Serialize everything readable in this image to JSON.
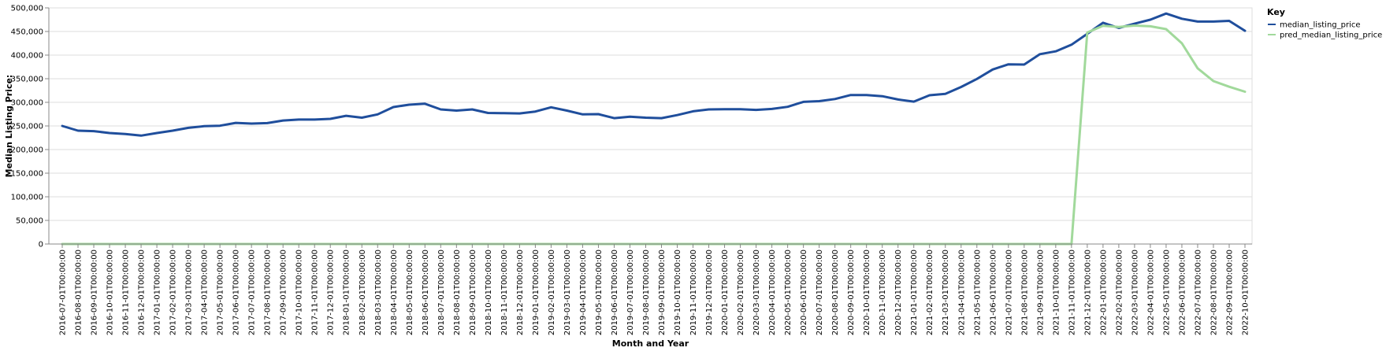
{
  "chart_data": {
    "type": "line",
    "title": "",
    "xlabel": "Month and Year",
    "ylabel": "Median Listing Price:",
    "ylim": [
      0,
      500000
    ],
    "y_ticks": [
      "0",
      "50,000",
      "100,000",
      "150,000",
      "200,000",
      "250,000",
      "300,000",
      "350,000",
      "400,000",
      "450,000",
      "500,000"
    ],
    "y_tick_values": [
      0,
      50000,
      100000,
      150000,
      200000,
      250000,
      300000,
      350000,
      400000,
      450000,
      500000
    ],
    "grid": true,
    "legend": {
      "title": "Key",
      "placement": "top-right"
    },
    "x": [
      "2016-07-01T00:00:00",
      "2016-08-01T00:00:00",
      "2016-09-01T00:00:00",
      "2016-10-01T00:00:00",
      "2016-11-01T00:00:00",
      "2016-12-01T00:00:00",
      "2017-01-01T00:00:00",
      "2017-02-01T00:00:00",
      "2017-03-01T00:00:00",
      "2017-04-01T00:00:00",
      "2017-05-01T00:00:00",
      "2017-06-01T00:00:00",
      "2017-07-01T00:00:00",
      "2017-08-01T00:00:00",
      "2017-09-01T00:00:00",
      "2017-10-01T00:00:00",
      "2017-11-01T00:00:00",
      "2017-12-01T00:00:00",
      "2018-01-01T00:00:00",
      "2018-02-01T00:00:00",
      "2018-03-01T00:00:00",
      "2018-04-01T00:00:00",
      "2018-05-01T00:00:00",
      "2018-06-01T00:00:00",
      "2018-07-01T00:00:00",
      "2018-08-01T00:00:00",
      "2018-09-01T00:00:00",
      "2018-10-01T00:00:00",
      "2018-11-01T00:00:00",
      "2018-12-01T00:00:00",
      "2019-01-01T00:00:00",
      "2019-02-01T00:00:00",
      "2019-03-01T00:00:00",
      "2019-04-01T00:00:00",
      "2019-05-01T00:00:00",
      "2019-06-01T00:00:00",
      "2019-07-01T00:00:00",
      "2019-08-01T00:00:00",
      "2019-09-01T00:00:00",
      "2019-10-01T00:00:00",
      "2019-11-01T00:00:00",
      "2019-12-01T00:00:00",
      "2020-01-01T00:00:00",
      "2020-02-01T00:00:00",
      "2020-03-01T00:00:00",
      "2020-04-01T00:00:00",
      "2020-05-01T00:00:00",
      "2020-06-01T00:00:00",
      "2020-07-01T00:00:00",
      "2020-08-01T00:00:00",
      "2020-09-01T00:00:00",
      "2020-10-01T00:00:00",
      "2020-11-01T00:00:00",
      "2020-12-01T00:00:00",
      "2021-01-01T00:00:00",
      "2021-02-01T00:00:00",
      "2021-03-01T00:00:00",
      "2021-04-01T00:00:00",
      "2021-05-01T00:00:00",
      "2021-06-01T00:00:00",
      "2021-07-01T00:00:00",
      "2021-08-01T00:00:00",
      "2021-09-01T00:00:00",
      "2021-10-01T00:00:00",
      "2021-11-01T00:00:00",
      "2021-12-01T00:00:00",
      "2022-01-01T00:00:00",
      "2022-02-01T00:00:00",
      "2022-03-01T00:00:00",
      "2022-04-01T00:00:00",
      "2022-05-01T00:00:00",
      "2022-06-01T00:00:00",
      "2022-07-01T00:00:00",
      "2022-08-01T00:00:00",
      "2022-09-01T00:00:00",
      "2022-10-01T00:00:00"
    ],
    "series": [
      {
        "name": "median_listing_price",
        "color": "#1f4e9c",
        "values": [
          250000,
          240000,
          239000,
          235000,
          233000,
          229500,
          235000,
          240000,
          246000,
          249500,
          250500,
          256500,
          255000,
          256000,
          261500,
          263500,
          263500,
          265000,
          271500,
          267500,
          274500,
          290000,
          295000,
          297000,
          285000,
          282500,
          285000,
          277500,
          277000,
          276500,
          280500,
          289500,
          282500,
          274500,
          275000,
          266500,
          269500,
          267500,
          266500,
          273000,
          281000,
          285000,
          285500,
          285500,
          284000,
          286000,
          290500,
          301000,
          302500,
          307000,
          315500,
          315500,
          313000,
          306000,
          301500,
          315000,
          318000,
          332500,
          349500,
          369500,
          380500,
          380000,
          402000,
          408000,
          422000,
          445000,
          468500,
          457500,
          466500,
          475000,
          488000,
          477000,
          471000,
          471000,
          472500,
          451500
        ]
      },
      {
        "name": "pred_median_listing_price",
        "color": "#a1d99b",
        "values": [
          0,
          0,
          0,
          0,
          0,
          0,
          0,
          0,
          0,
          0,
          0,
          0,
          0,
          0,
          0,
          0,
          0,
          0,
          0,
          0,
          0,
          0,
          0,
          0,
          0,
          0,
          0,
          0,
          0,
          0,
          0,
          0,
          0,
          0,
          0,
          0,
          0,
          0,
          0,
          0,
          0,
          0,
          0,
          0,
          0,
          0,
          0,
          0,
          0,
          0,
          0,
          0,
          0,
          0,
          0,
          0,
          0,
          0,
          0,
          0,
          0,
          0,
          0,
          0,
          0,
          448000,
          462000,
          459500,
          462500,
          461000,
          455000,
          425000,
          372000,
          345000,
          333000,
          322500
        ]
      }
    ]
  }
}
